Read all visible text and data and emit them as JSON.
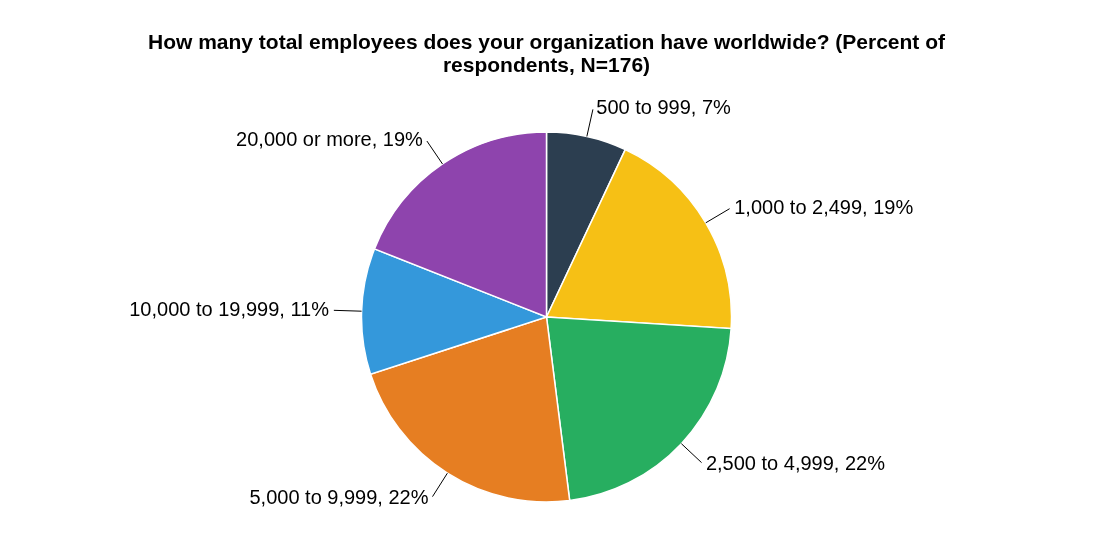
{
  "chart_data": {
    "type": "pie",
    "title": "How many total employees does your organization have worldwide? (Percent of respondents, N=176)",
    "categories": [
      "500 to 999",
      "1,000 to 2,499",
      "2,500 to 4,999",
      "5,000 to 9,999",
      "10,000 to 19,999",
      "20,000 or more"
    ],
    "values": [
      7,
      19,
      22,
      22,
      11,
      19
    ],
    "value_labels": [
      "7%",
      "19%",
      "22%",
      "22%",
      "11%",
      "19%"
    ],
    "colors": [
      "#2c3e50",
      "#f6c015",
      "#27ae60",
      "#e67e22",
      "#3498db",
      "#8e44ad"
    ]
  }
}
